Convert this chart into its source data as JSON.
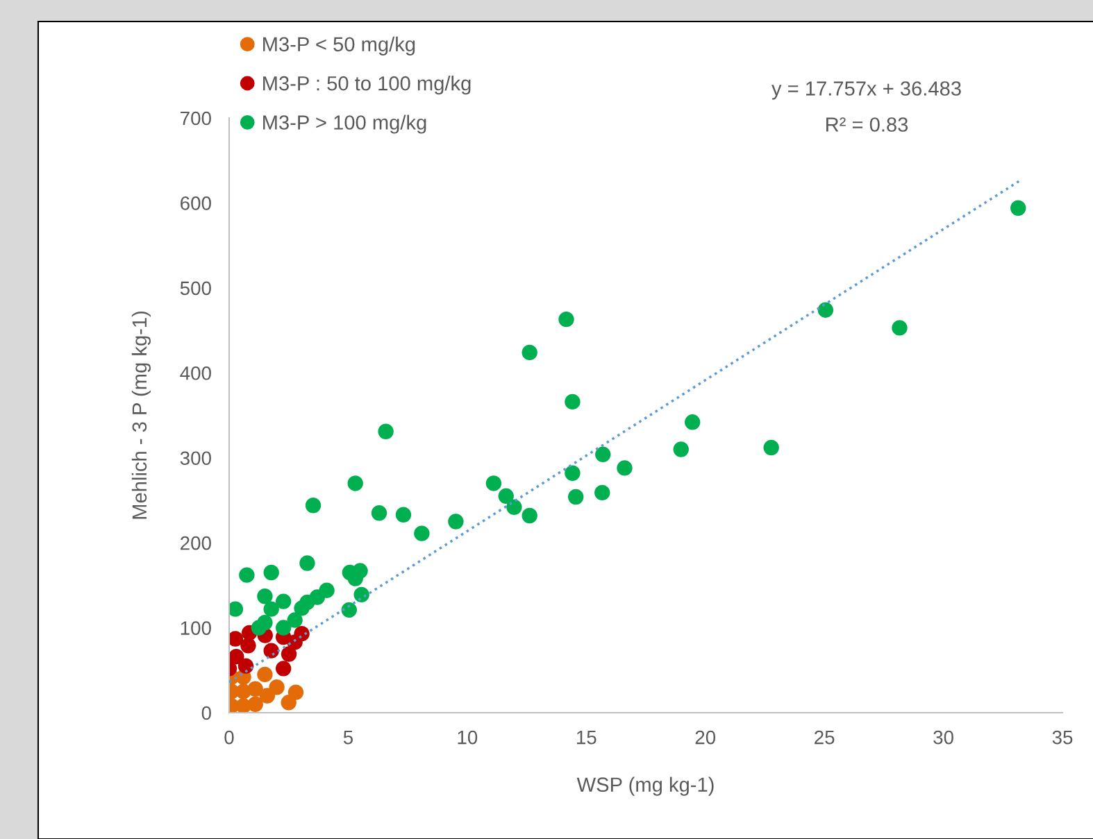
{
  "chart_data": {
    "type": "scatter",
    "xlabel": "WSP (mg kg-1)",
    "ylabel": "Mehlich - 3 P (mg kg-1)",
    "xlim": [
      0,
      35
    ],
    "xticks": [
      0,
      5,
      10,
      15,
      20,
      25,
      30,
      35
    ],
    "ylim": [
      0,
      700
    ],
    "yticks": [
      0,
      100,
      200,
      300,
      400,
      500,
      600,
      700
    ],
    "grid": false,
    "legend": "top left",
    "marker": "circle",
    "annotations": [
      "y = 17.757x + 36.483",
      "R² = 0.83"
    ],
    "series": [
      {
        "name": "M3-P < 50 mg/kg",
        "color": "#e36c09",
        "x": [
          0.1,
          0.1,
          0.1,
          0.6,
          0.6,
          0.6,
          1.1,
          1.1,
          1.5,
          1.6,
          2.0,
          2.5,
          2.8
        ],
        "values": [
          8,
          25,
          42,
          8,
          25,
          42,
          10,
          28,
          45,
          20,
          30,
          12,
          24
        ]
      },
      {
        "name": "M3-P : 50 to 100 mg/kg",
        "color": "#c00000",
        "x": [
          0.0,
          0.26,
          0.3,
          0.7,
          0.8,
          0.85,
          1.51,
          1.77,
          2.28,
          2.51,
          2.28,
          2.76,
          3.05
        ],
        "values": [
          52,
          87,
          66,
          55,
          79,
          94,
          91,
          73,
          52,
          69,
          89,
          83,
          93
        ]
      },
      {
        "name": "M3-P > 100 mg/kg",
        "color": "#00b050",
        "x": [
          0.26,
          0.74,
          1.77,
          1.5,
          1.77,
          2.28,
          1.5,
          1.25,
          2.28,
          2.76,
          3.05,
          3.28,
          3.28,
          3.7,
          4.1,
          3.53,
          5.04,
          5.07,
          5.5,
          5.3,
          5.56,
          5.3,
          6.58,
          6.3,
          7.32,
          8.09,
          9.52,
          11.11,
          11.63,
          11.97,
          12.62,
          12.62,
          14.16,
          14.42,
          14.42,
          14.56,
          15.67,
          15.7,
          16.61,
          18.98,
          19.46,
          22.77,
          25.05,
          28.16,
          33.14
        ],
        "values": [
          122,
          162,
          165,
          137,
          122,
          131,
          106,
          100,
          100,
          109,
          123,
          130,
          176,
          136,
          144,
          244,
          121,
          165,
          167,
          158,
          139,
          270,
          331,
          235,
          233,
          211,
          225,
          270,
          255,
          242,
          424,
          232,
          463,
          366,
          282,
          254,
          259,
          304,
          288,
          310,
          342,
          312,
          474,
          453,
          594
        ]
      },
      {
        "type": "line",
        "color": "#5b9bd5",
        "line_style": "dotted",
        "marker": "none",
        "x": [
          0,
          33.2
        ],
        "values": [
          36,
          626
        ]
      }
    ]
  }
}
